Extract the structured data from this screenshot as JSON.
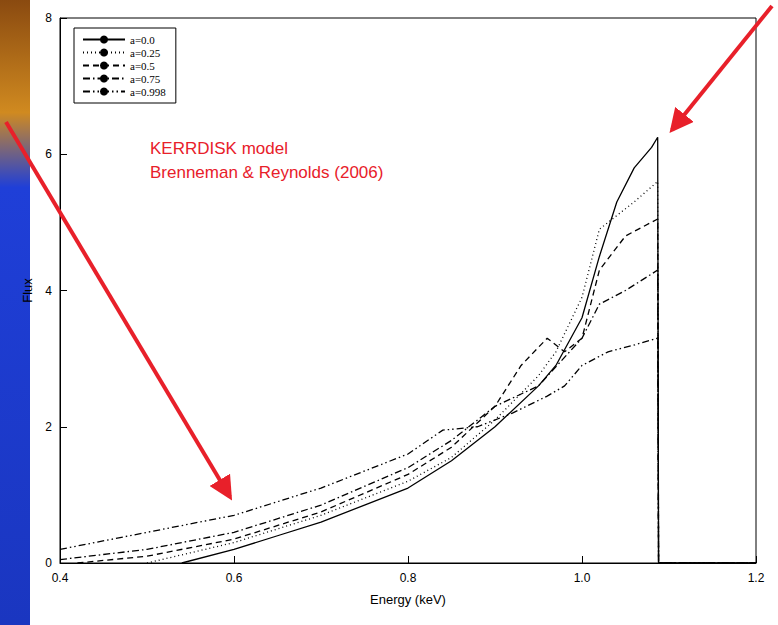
{
  "chart_data": {
    "type": "line",
    "xlabel": "Energy (keV)",
    "ylabel": "Flux",
    "annotations": [
      "KERRDISK model",
      "Brenneman & Reynolds (2006)"
    ],
    "xlim": [
      0.4,
      1.2
    ],
    "xticks": [
      0.4,
      0.6,
      0.8,
      {
        "value": 1,
        "label": "1.0"
      },
      1.2
    ],
    "ylim": [
      0,
      8
    ],
    "yticks": [
      0,
      2,
      4,
      6,
      8
    ],
    "grid": false,
    "legend": "top-left",
    "series": [
      {
        "name": "a=0.0",
        "color": "#000000",
        "line_style": "solid",
        "x": [
          0.54,
          0.6,
          0.65,
          0.7,
          0.75,
          0.8,
          0.85,
          0.9,
          0.95,
          0.97,
          1.0,
          1.02,
          1.04,
          1.06,
          1.08,
          1.087,
          1.088,
          1.2
        ],
        "values": [
          0,
          0.2,
          0.4,
          0.6,
          0.85,
          1.1,
          1.5,
          2.0,
          2.6,
          2.9,
          3.6,
          4.5,
          5.3,
          5.8,
          6.1,
          6.25,
          0,
          0
        ]
      },
      {
        "name": "a=0.25",
        "color": "#000000",
        "line_style": "dotted",
        "x": [
          0.5,
          0.55,
          0.6,
          0.7,
          0.8,
          0.85,
          0.9,
          0.95,
          0.97,
          1.0,
          1.02,
          1.04,
          1.06,
          1.087,
          1.088,
          1.2
        ],
        "values": [
          0,
          0.15,
          0.3,
          0.7,
          1.2,
          1.55,
          2.1,
          2.75,
          3.1,
          3.9,
          4.9,
          5.1,
          5.3,
          5.6,
          0,
          0
        ]
      },
      {
        "name": "a=0.5",
        "color": "#000000",
        "line_style": "dashed",
        "x": [
          0.42,
          0.5,
          0.6,
          0.7,
          0.8,
          0.85,
          0.9,
          0.93,
          0.96,
          0.98,
          1.0,
          1.02,
          1.05,
          1.087,
          1.088,
          1.2
        ],
        "values": [
          0,
          0.1,
          0.35,
          0.75,
          1.3,
          1.7,
          2.3,
          2.9,
          3.3,
          3.1,
          3.3,
          4.3,
          4.8,
          5.05,
          0,
          0
        ]
      },
      {
        "name": "a=0.75",
        "color": "#000000",
        "line_style": "dashdot",
        "x": [
          0.4,
          0.5,
          0.6,
          0.7,
          0.8,
          0.85,
          0.88,
          0.9,
          0.95,
          1.0,
          1.02,
          1.05,
          1.087,
          1.088,
          1.2
        ],
        "values": [
          0.05,
          0.2,
          0.45,
          0.85,
          1.4,
          1.8,
          2.1,
          2.3,
          2.6,
          3.3,
          3.8,
          4.0,
          4.3,
          0,
          0
        ]
      },
      {
        "name": "a=0.998",
        "color": "#000000",
        "line_style": "dashdotdot",
        "x": [
          0.4,
          0.5,
          0.6,
          0.7,
          0.8,
          0.84,
          0.88,
          0.92,
          0.96,
          0.98,
          1.0,
          1.03,
          1.06,
          1.087,
          1.088,
          1.2
        ],
        "values": [
          0.2,
          0.45,
          0.7,
          1.1,
          1.6,
          1.95,
          2.0,
          2.2,
          2.45,
          2.6,
          2.9,
          3.1,
          3.2,
          3.3,
          0,
          0
        ]
      }
    ]
  }
}
